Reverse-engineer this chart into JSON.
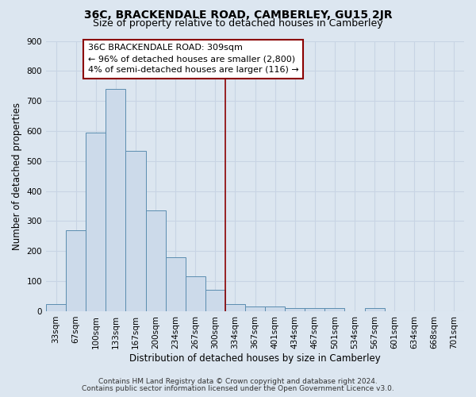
{
  "title": "36C, BRACKENDALE ROAD, CAMBERLEY, GU15 2JR",
  "subtitle": "Size of property relative to detached houses in Camberley",
  "xlabel": "Distribution of detached houses by size in Camberley",
  "ylabel": "Number of detached properties",
  "categories": [
    "33sqm",
    "67sqm",
    "100sqm",
    "133sqm",
    "167sqm",
    "200sqm",
    "234sqm",
    "267sqm",
    "300sqm",
    "334sqm",
    "367sqm",
    "401sqm",
    "434sqm",
    "467sqm",
    "501sqm",
    "534sqm",
    "567sqm",
    "601sqm",
    "634sqm",
    "668sqm",
    "701sqm"
  ],
  "values": [
    25,
    270,
    595,
    740,
    535,
    335,
    180,
    115,
    70,
    25,
    15,
    15,
    10,
    10,
    10,
    0,
    10,
    0,
    0,
    0,
    0
  ],
  "bar_color": "#ccdaea",
  "bar_edge_color": "#5b8db0",
  "vline_x_index": 8,
  "vline_color": "#8b0000",
  "ylim": [
    0,
    900
  ],
  "yticks": [
    0,
    100,
    200,
    300,
    400,
    500,
    600,
    700,
    800,
    900
  ],
  "annotation_line1": "36C BRACKENDALE ROAD: 309sqm",
  "annotation_line2": "← 96% of detached houses are smaller (2,800)",
  "annotation_line3": "4% of semi-detached houses are larger (116) →",
  "annotation_box_color": "#ffffff",
  "annotation_box_edge_color": "#8b0000",
  "grid_color": "#c8d4e4",
  "bg_color": "#dce6f0",
  "footnote1": "Contains HM Land Registry data © Crown copyright and database right 2024.",
  "footnote2": "Contains public sector information licensed under the Open Government Licence v3.0.",
  "title_fontsize": 10,
  "subtitle_fontsize": 9,
  "xlabel_fontsize": 8.5,
  "ylabel_fontsize": 8.5,
  "tick_fontsize": 7.5,
  "annotation_fontsize": 8,
  "footnote_fontsize": 6.5
}
